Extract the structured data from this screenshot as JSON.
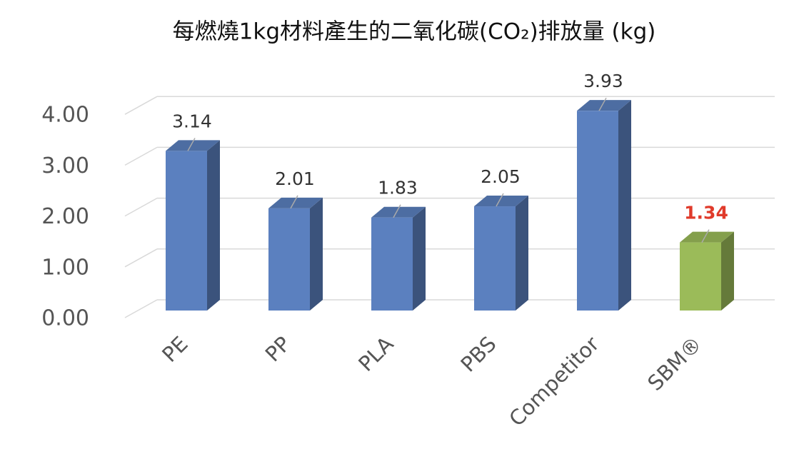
{
  "chart_data": {
    "type": "bar3d",
    "title": "每燃燒1kg材料產生的二氧化碳(CO₂)排放量 (kg)",
    "categories": [
      "PE",
      "PP",
      "PLA",
      "PBS",
      "Competitor",
      "SBM®"
    ],
    "values": [
      3.14,
      2.01,
      1.83,
      2.05,
      3.93,
      1.34
    ],
    "colors": [
      "#5b80bf",
      "#5b80bf",
      "#5b80bf",
      "#5b80bf",
      "#5b80bf",
      "#9bbb59"
    ],
    "label_colors": [
      "#333333",
      "#333333",
      "#333333",
      "#333333",
      "#333333",
      "#e03a2a"
    ],
    "ylim": [
      0,
      4
    ],
    "yticks": [
      {
        "value": 0,
        "label": "0.00"
      },
      {
        "value": 1,
        "label": "1.00"
      },
      {
        "value": 2,
        "label": "2.00"
      },
      {
        "value": 3,
        "label": "3.00"
      },
      {
        "value": 4,
        "label": "4.00"
      }
    ],
    "grid": true
  }
}
